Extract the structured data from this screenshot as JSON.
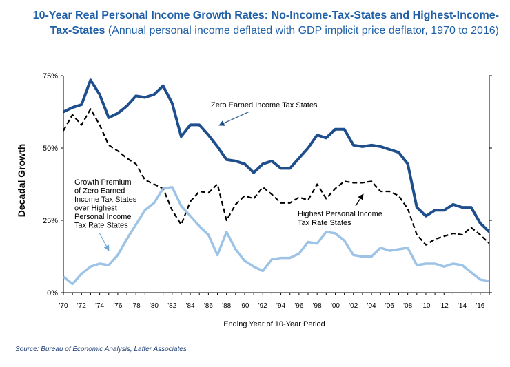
{
  "title": {
    "main": "10-Year Real Personal Income Growth Rates: No-Income-Tax-States and Highest-Income-Tax-States",
    "subtitle": "(Annual personal income deflated with GDP implicit price deflator, 1970 to 2016)"
  },
  "source": "Source: Bureau of Economic Analysis, Laffer Associates",
  "colors": {
    "zero_tax": "#1f4e8c",
    "highest_tax": "#000000",
    "premium": "#9dc3e6",
    "title": "#1f5fa8"
  },
  "chart_data": {
    "type": "line",
    "xlabel": "Ending Year of 10-Year Period",
    "ylabel": "Decadal Growth",
    "ylim": [
      0,
      75
    ],
    "y_ticks": [
      "0%",
      "25%",
      "50%",
      "75%"
    ],
    "x_ticks": [
      "'70",
      "'72",
      "'74",
      "'76",
      "'78",
      "'80",
      "'82",
      "'84",
      "'86",
      "'88",
      "'90",
      "'92",
      "'94",
      "'96",
      "'98",
      "'00",
      "'02",
      "'04",
      "'06",
      "'08",
      "'10",
      "'12",
      "'14",
      "'16"
    ],
    "x": [
      1970,
      1971,
      1972,
      1973,
      1974,
      1975,
      1976,
      1977,
      1978,
      1979,
      1980,
      1981,
      1982,
      1983,
      1984,
      1985,
      1986,
      1987,
      1988,
      1989,
      1990,
      1991,
      1992,
      1993,
      1994,
      1995,
      1996,
      1997,
      1998,
      1999,
      2000,
      2001,
      2002,
      2003,
      2004,
      2005,
      2006,
      2007,
      2008,
      2009,
      2010,
      2011,
      2012,
      2013,
      2014,
      2015,
      2016,
      2017
    ],
    "series": [
      {
        "name": "Zero Earned Income Tax States",
        "style": "solid-thick",
        "values": [
          62.5,
          64,
          65,
          73.5,
          68.5,
          60.5,
          62,
          64.5,
          68,
          67.5,
          68.5,
          71.5,
          65.5,
          54,
          58,
          58,
          54.5,
          50.5,
          46,
          45.5,
          44.5,
          41.5,
          44.5,
          45.5,
          43,
          43,
          46.5,
          50,
          54.5,
          53.5,
          56.5,
          56.5,
          51,
          50.5,
          51,
          50.5,
          49.5,
          48.5,
          44.5,
          29.5,
          26.5,
          28.5,
          28.5,
          30.5,
          29.5,
          29.5,
          24,
          21
        ]
      },
      {
        "name": "Highest Personal Income Tax Rate States",
        "style": "dashed",
        "values": [
          56,
          61.5,
          58,
          63.5,
          58,
          51,
          49,
          46.5,
          44.5,
          39,
          37.5,
          36,
          28.5,
          23.5,
          31.5,
          35,
          34.5,
          37.5,
          25,
          30.5,
          33.5,
          32.5,
          36.5,
          34,
          31,
          31,
          33,
          32,
          37.5,
          32.5,
          36,
          38.5,
          38,
          38,
          38.5,
          35,
          35,
          33.5,
          29,
          20,
          16.5,
          18.5,
          19.5,
          20.5,
          20,
          22.5,
          20,
          17
        ]
      },
      {
        "name": "Growth Premium of Zero Earned Income Tax States over Highest Personal Income Tax Rate States",
        "style": "solid-light",
        "values": [
          5.5,
          3,
          6.5,
          9,
          10,
          9.5,
          13,
          18.5,
          23.5,
          28.5,
          31,
          36,
          36.5,
          30,
          26.5,
          23,
          20,
          13,
          21,
          15,
          11,
          9,
          7.5,
          11.5,
          12,
          12,
          13.5,
          17.5,
          17,
          21,
          20.5,
          18,
          13,
          12.5,
          12.5,
          15.5,
          14.5,
          15,
          15.5,
          9.5,
          10,
          10,
          9,
          10,
          9.5,
          7,
          4.5,
          4
        ]
      }
    ],
    "annotations": {
      "zero_tax": "Zero Earned Income Tax States",
      "highest_tax": [
        "Highest Personal Income",
        "Tax Rate States"
      ],
      "premium": [
        "Growth Premium",
        "of Zero Earned",
        "Income Tax States",
        "over Highest",
        "Personal Income",
        "Tax Rate States"
      ]
    },
    "grid": false
  }
}
